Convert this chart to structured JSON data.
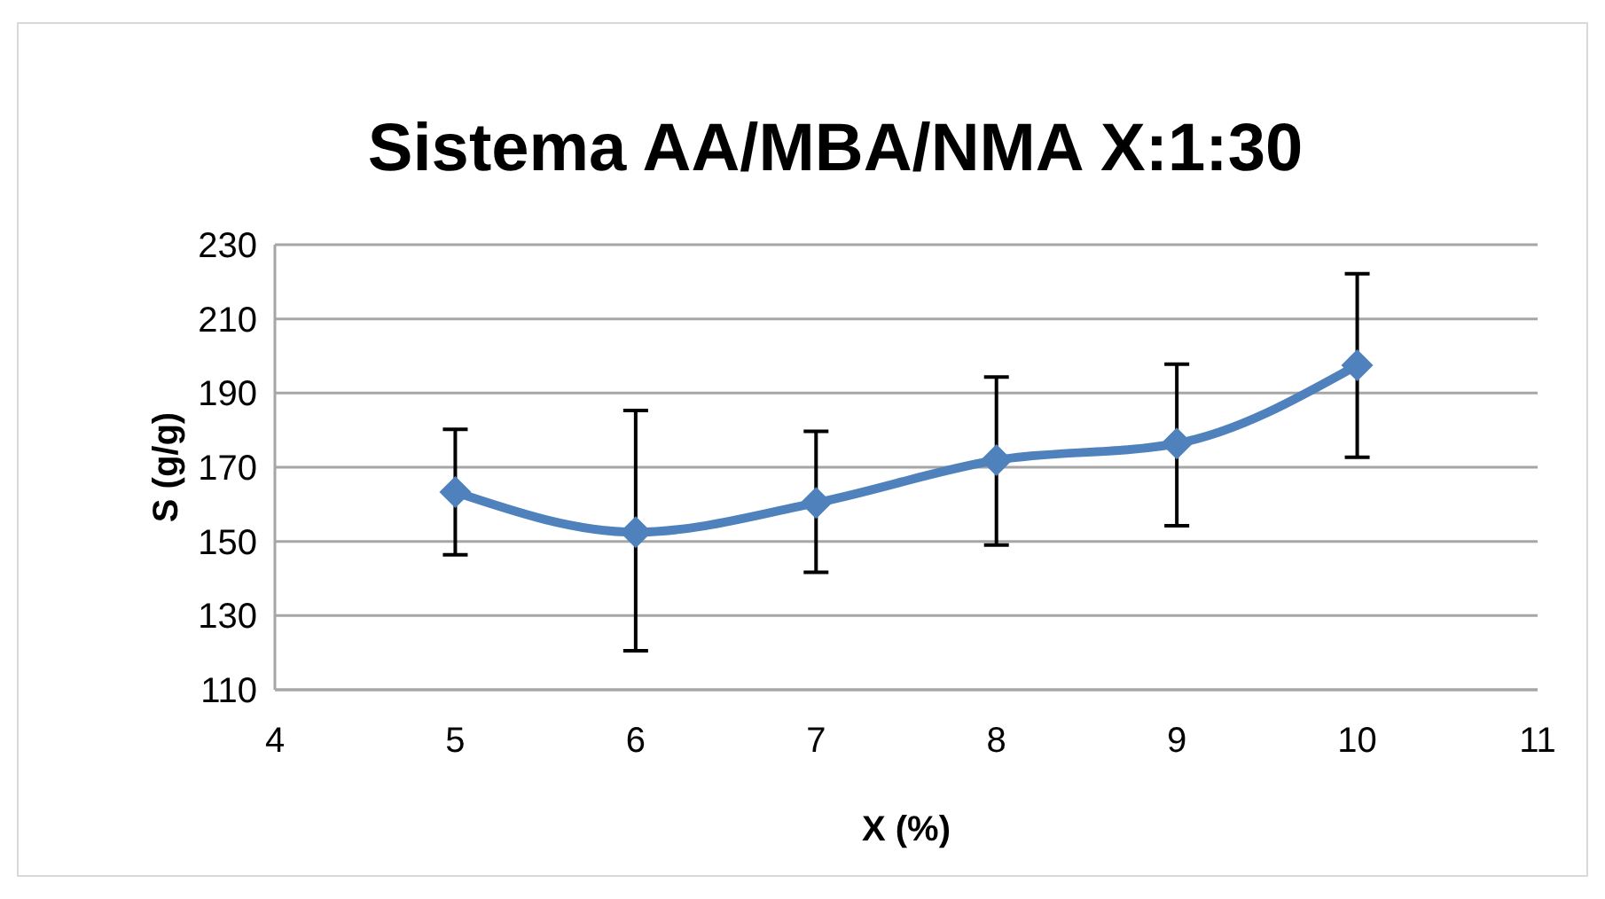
{
  "chart_data": {
    "type": "line",
    "title": "Sistema AA/MBA/NMA X:1:30",
    "xlabel": "X (%)",
    "ylabel": "S (g/g)",
    "x": [
      5,
      6,
      7,
      8,
      9,
      10
    ],
    "series": [
      {
        "color": "#4f81bd",
        "values": [
          163.3,
          152.5,
          160.4,
          171.9,
          176.4,
          197.5
        ],
        "errors": [
          [
            146.4,
            180.2
          ],
          [
            120.5,
            185.3
          ],
          [
            141.7,
            179.7
          ],
          [
            149.0,
            194.3
          ],
          [
            154.2,
            197.8
          ],
          [
            172.7,
            222.2
          ]
        ]
      }
    ],
    "xlim": [
      4,
      11
    ],
    "xticks": [
      4,
      5,
      6,
      7,
      8,
      9,
      10,
      11
    ],
    "ylim": [
      110,
      230
    ],
    "yticks": [
      110,
      130,
      150,
      170,
      190,
      210,
      230
    ],
    "grid": "y",
    "marker": "diamond",
    "line_style": "solid"
  }
}
